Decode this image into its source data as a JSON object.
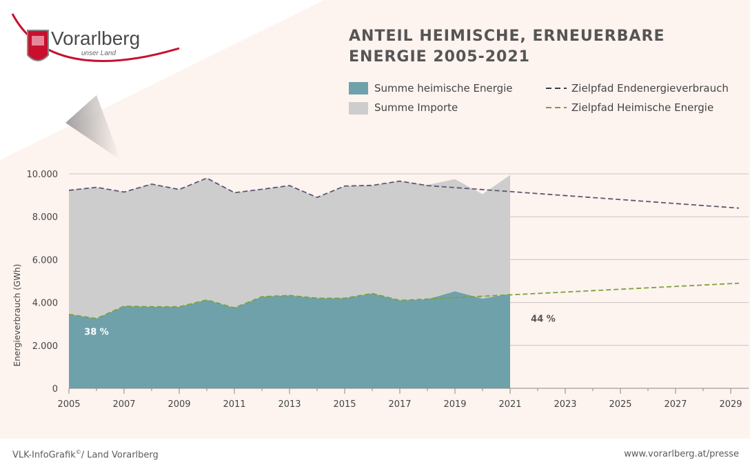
{
  "header": {
    "logo_text": "Vorarlberg",
    "logo_sub": "unser Land",
    "title_line1": "ANTEIL HEIMISCHE, ERNEUERBARE",
    "title_line2": "ENERGIE 2005-2021"
  },
  "legend": {
    "heimisch": "Summe heimische Energie",
    "importe": "Summe Importe",
    "zielpfad_end": "Zielpfad Endenergieverbrauch",
    "zielpfad_heim": "Zielpfad Heimische Energie"
  },
  "colors": {
    "heimisch": "#6fa1aa",
    "importe": "#cdcdcd",
    "zielpfad_end": "#5b5870",
    "zielpfad_heim": "#79a23a",
    "logo_red": "#c8102e"
  },
  "footer": {
    "source_main": "VLK-InfoGrafik",
    "source_sup": "©",
    "source_rest": "/ Land Vorarlberg",
    "url": "www.vorarlberg.at/presse"
  },
  "chart_data": {
    "type": "area",
    "ylabel": "Energieverbrauch (GWh)",
    "ylim": [
      0,
      10000
    ],
    "xlim": [
      2005,
      2029.3
    ],
    "yticks": [
      0,
      2000,
      4000,
      6000,
      8000,
      10000
    ],
    "ytick_labels": [
      "0",
      "2.000",
      "4.000",
      "6.000",
      "8.000",
      "10.000"
    ],
    "xticks": [
      2005,
      2007,
      2009,
      2011,
      2013,
      2015,
      2017,
      2019,
      2021,
      2023,
      2025,
      2027,
      2029
    ],
    "grid": true,
    "x": [
      2005,
      2006,
      2007,
      2008,
      2009,
      2010,
      2011,
      2012,
      2013,
      2014,
      2015,
      2016,
      2017,
      2018,
      2019,
      2020,
      2021
    ],
    "series": [
      {
        "name": "Summe heimische Energie",
        "values": [
          3450,
          3250,
          3830,
          3800,
          3800,
          4120,
          3750,
          4270,
          4330,
          4200,
          4200,
          4420,
          4100,
          4150,
          4520,
          4180,
          4400
        ]
      },
      {
        "name": "Summe Importe",
        "values": [
          5800,
          6120,
          5320,
          5730,
          5470,
          5680,
          5380,
          5010,
          5120,
          4700,
          5230,
          5040,
          5560,
          5330,
          5230,
          4870,
          5540
        ]
      }
    ],
    "targets": [
      {
        "name": "Zielpfad Endenergieverbrauch",
        "x": [
          2005,
          2006,
          2007,
          2008,
          2009,
          2010,
          2011,
          2012,
          2013,
          2014,
          2015,
          2016,
          2017,
          2018,
          2029.3
        ],
        "values": [
          9230,
          9370,
          9150,
          9520,
          9270,
          9800,
          9120,
          9280,
          9450,
          8900,
          9430,
          9460,
          9660,
          9450,
          8400
        ]
      },
      {
        "name": "Zielpfad Heimische Energie",
        "x": [
          2005,
          2006,
          2007,
          2008,
          2009,
          2010,
          2011,
          2012,
          2013,
          2014,
          2015,
          2016,
          2017,
          2018,
          2029.3
        ],
        "values": [
          3450,
          3250,
          3830,
          3800,
          3800,
          4120,
          3750,
          4270,
          4330,
          4200,
          4200,
          4420,
          4100,
          4160,
          4900
        ]
      }
    ],
    "annotations": [
      {
        "text": "38 %",
        "x": 2006,
        "y": 2500,
        "color": "#ffffff"
      },
      {
        "text": "44 %",
        "x": 2022.2,
        "y": 3100,
        "color": "#555555"
      }
    ]
  }
}
